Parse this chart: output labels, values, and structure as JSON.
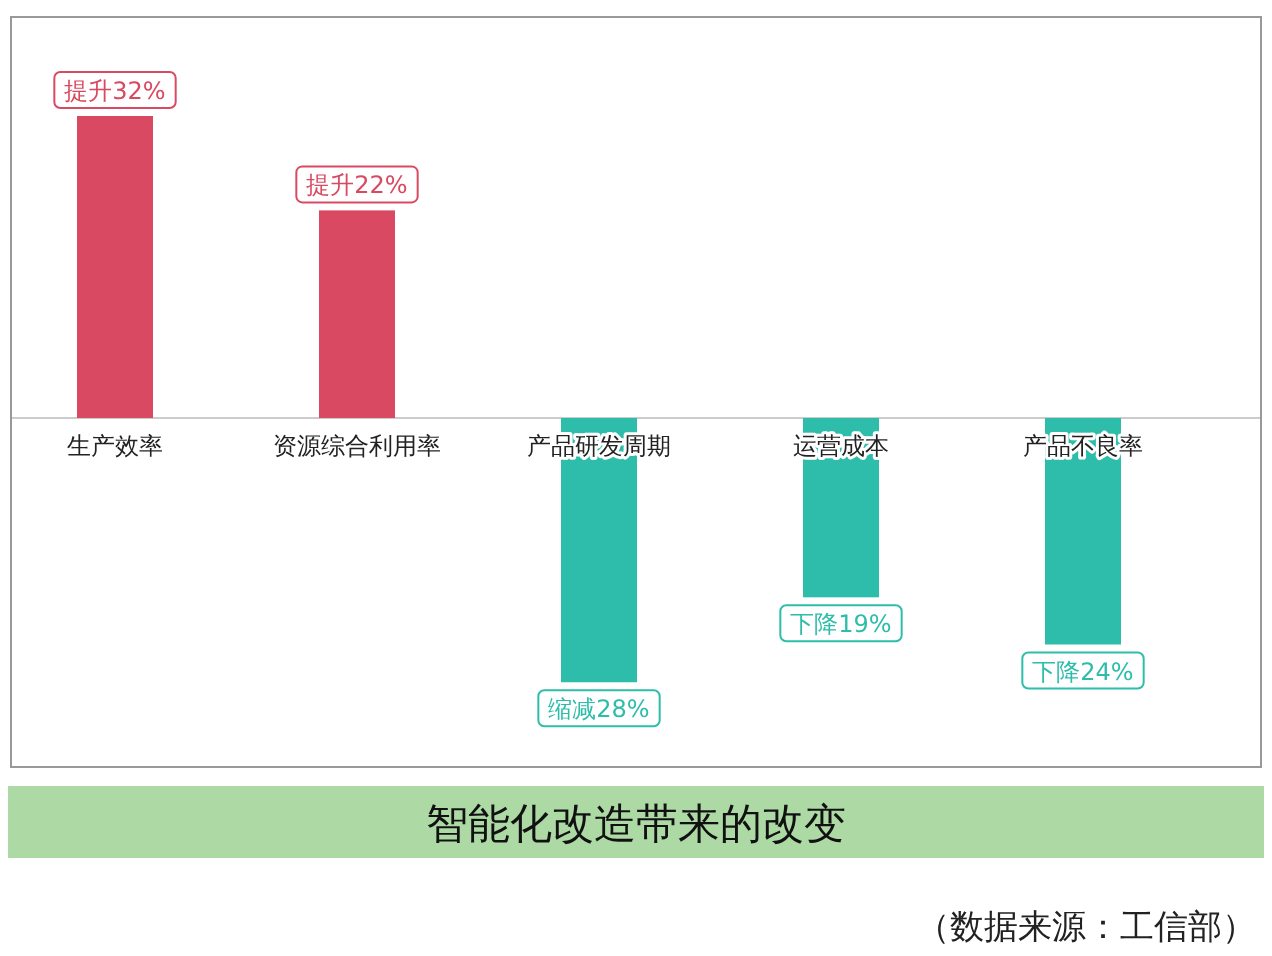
{
  "chart_data": {
    "type": "bar",
    "title": "智能化改造带来的改变",
    "categories": [
      "生产效率",
      "资源综合利用率",
      "产品研发周期",
      "运营成本",
      "产品不良率"
    ],
    "values": [
      32,
      22,
      -28,
      -19,
      -24
    ],
    "value_labels": [
      "提升32%",
      "提升22%",
      "缩减28%",
      "下降19%",
      "下降24%"
    ],
    "colors": [
      "#d94a62",
      "#d94a62",
      "#2dbdaa",
      "#2dbdaa",
      "#2dbdaa"
    ],
    "annotations": [
      "（数据来源：工信部）"
    ]
  }
}
